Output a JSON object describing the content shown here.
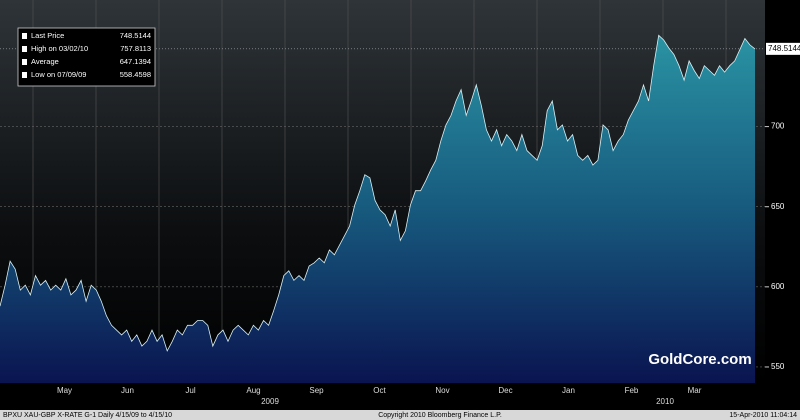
{
  "chart_data": {
    "type": "area",
    "series": [
      {
        "name": "Last Price",
        "color": "#2a93a3",
        "values": [
          588,
          601,
          616,
          611,
          598,
          601,
          595,
          607,
          601,
          604,
          598,
          601,
          598,
          605,
          595,
          598,
          604,
          591,
          601,
          598,
          591,
          582,
          576,
          573,
          570,
          573,
          566,
          570,
          563,
          566,
          573,
          566,
          570,
          560,
          566,
          573,
          570,
          576,
          576,
          579,
          579,
          576,
          563,
          570,
          573,
          566,
          573,
          576,
          573,
          570,
          576,
          573,
          579,
          576,
          585,
          595,
          607,
          610,
          604,
          607,
          604,
          613,
          615,
          618,
          615,
          623,
          620,
          626,
          632,
          638,
          651,
          660,
          670,
          668,
          654,
          648,
          645,
          638,
          648,
          629,
          635,
          651,
          660,
          660,
          666,
          673,
          679,
          691,
          701,
          707,
          716,
          723,
          707,
          716,
          726,
          713,
          698,
          691,
          698,
          688,
          695,
          691,
          685,
          695,
          685,
          682,
          679,
          688,
          710,
          716,
          698,
          701,
          691,
          695,
          682,
          679,
          682,
          676,
          679,
          701,
          698,
          685,
          691,
          695,
          704,
          710,
          716,
          726,
          716,
          738,
          757,
          754,
          749,
          745,
          738,
          729,
          741,
          735,
          730,
          738,
          735,
          732,
          738,
          734,
          738,
          741,
          748,
          755,
          751,
          748.5144
        ]
      }
    ],
    "ylim": [
      540,
      779
    ],
    "yticks": [
      550,
      600,
      650,
      700
    ],
    "grid": true,
    "last_price": 748.5144,
    "months": [
      "May",
      "Jun",
      "Jul",
      "Aug",
      "Sep",
      "Oct",
      "Nov",
      "Dec",
      "Jan",
      "Feb",
      "Mar"
    ],
    "years": [
      "2009",
      "2010"
    ],
    "legend": [
      {
        "label": "Last Price",
        "value": 748.5144
      },
      {
        "label": "High on 03/02/10",
        "value": 757.8113
      },
      {
        "label": "Average",
        "value": 647.1394
      },
      {
        "label": "Low on 07/09/09",
        "value": 558.4598
      }
    ],
    "watermark": "GoldCore.com",
    "footer": {
      "left": "BPXU XAU-GBP X-RATE   G-1   Daily 4/15/09 to 4/15/10",
      "center": "Copyright 2010 Bloomberg Finance L.P.",
      "right": "15-Apr-2010 11:04:14"
    }
  }
}
